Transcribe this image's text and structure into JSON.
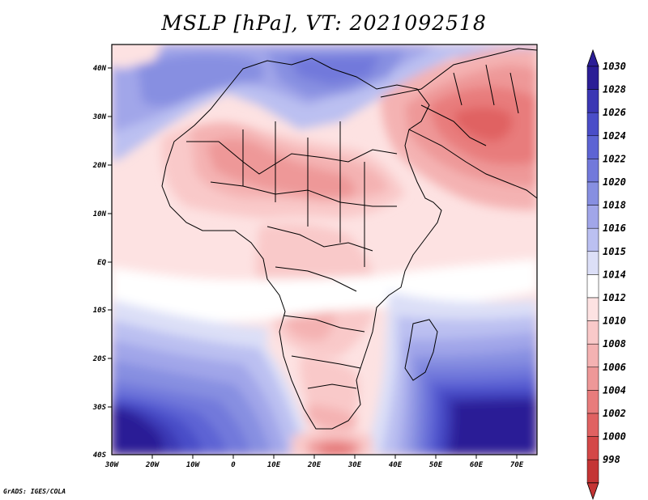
{
  "title": "MSLP [hPa], VT: 2021092518",
  "credit": "GrADS: IGES/COLA",
  "map": {
    "variable": "MSLP",
    "units": "hPa",
    "valid_time": "2021092518",
    "lat_labels": [
      "40N",
      "30N",
      "20N",
      "10N",
      "EQ",
      "10S",
      "20S",
      "30S",
      "40S"
    ],
    "lon_labels": [
      "30W",
      "20W",
      "10W",
      "0",
      "10E",
      "20E",
      "30E",
      "40E",
      "50E",
      "60E",
      "70E"
    ]
  },
  "colorbar": {
    "levels": [
      "1030",
      "1028",
      "1026",
      "1024",
      "1022",
      "1020",
      "1018",
      "1016",
      "1015",
      "1014",
      "1012",
      "1010",
      "1008",
      "1006",
      "1004",
      "1002",
      "1000",
      "998"
    ],
    "colors": [
      "#2b1e96",
      "#3b37b4",
      "#4a4dc8",
      "#5d64d4",
      "#7279db",
      "#878fe1",
      "#a1a6e9",
      "#bbc0f1",
      "#dcdff7",
      "#ffffff",
      "#fde2e2",
      "#f9c9c9",
      "#f4b2b2",
      "#ee9898",
      "#e87c7c",
      "#e06262",
      "#d44848",
      "#c43434"
    ]
  },
  "regions": {
    "south_atlantic_high": "1030",
    "indian_ocean_high": "1030",
    "mediterranean_high": "1020",
    "sahara_low": "1008",
    "arabian_low": "1004"
  }
}
